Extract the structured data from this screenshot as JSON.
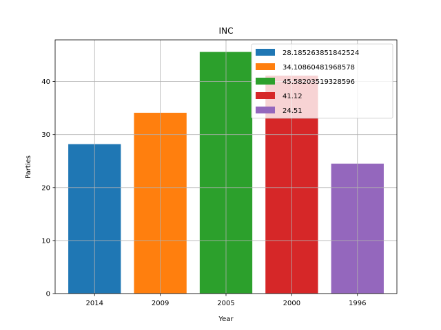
{
  "chart_data": {
    "type": "bar",
    "title": "INC",
    "xlabel": "Year",
    "ylabel": "Parties",
    "categories": [
      "2014",
      "2009",
      "2005",
      "2000",
      "1996"
    ],
    "values": [
      28.185263851842524,
      34.10860481968578,
      45.58203519328596,
      41.12,
      24.51
    ],
    "colors": [
      "#1f77b4",
      "#ff7f0e",
      "#2ca02c",
      "#d62728",
      "#9467bd"
    ],
    "legend": [
      "28.185263851842524",
      "34.10860481968578",
      "45.58203519328596",
      "41.12",
      "24.51"
    ],
    "legend_location": "top-right",
    "ylim": [
      0,
      47.86
    ],
    "yticks": [
      0,
      10,
      20,
      30,
      40
    ],
    "grid": true
  }
}
